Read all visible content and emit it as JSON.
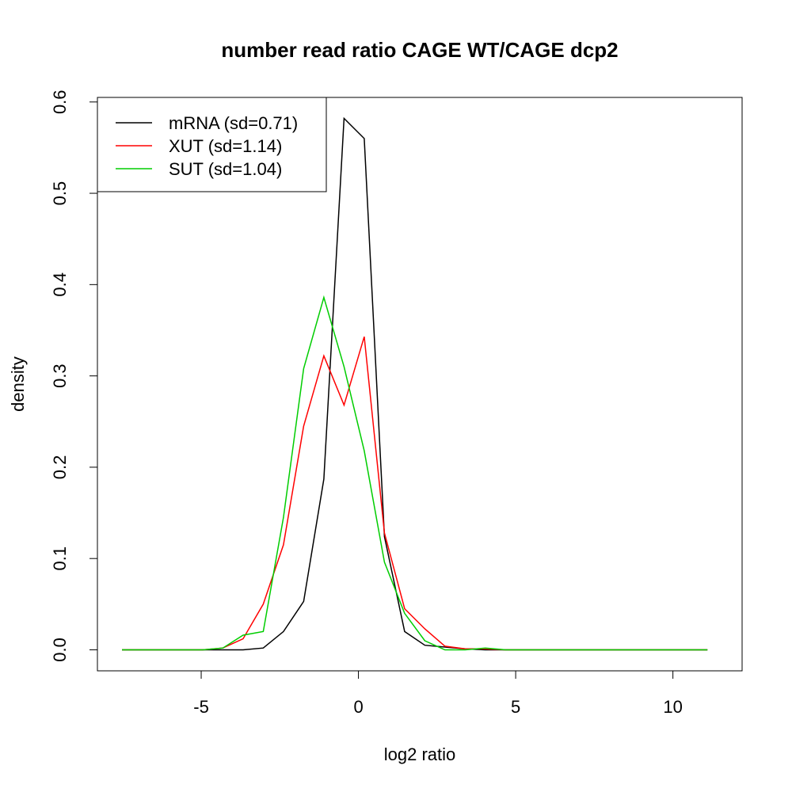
{
  "chart_data": {
    "type": "line",
    "title": "number read ratio CAGE WT/CAGE dcp2",
    "xlabel": "log2 ratio",
    "ylabel": "density",
    "xlim": [
      -8.3,
      12.2
    ],
    "ylim": [
      -0.023,
      0.605
    ],
    "x_ticks": [
      -5,
      0,
      5,
      10
    ],
    "x_tick_labels": [
      "-5",
      "0",
      "5",
      "10"
    ],
    "y_ticks": [
      0,
      0.1,
      0.2,
      0.3,
      0.4,
      0.5,
      0.6
    ],
    "y_tick_labels": [
      "0.0",
      "0.1",
      "0.2",
      "0.3",
      "0.4",
      "0.5",
      "0.6"
    ],
    "grid": false,
    "legend_position": "top-left",
    "x_start": -7.52,
    "x_step": 0.642,
    "series": [
      {
        "name": "mRNA (sd=0.71)",
        "color": "#000000",
        "values": [
          0,
          0,
          0,
          0,
          0,
          0,
          0,
          0.002,
          0.02,
          0.053,
          0.187,
          0.582,
          0.56,
          0.124,
          0.02,
          0.005,
          0.003,
          0.001,
          0,
          0,
          0,
          0,
          0,
          0,
          0,
          0,
          0,
          0,
          0,
          0
        ]
      },
      {
        "name": "XUT (sd=1.14)",
        "color": "#ff0000",
        "values": [
          0,
          0,
          0,
          0,
          0,
          0.002,
          0.012,
          0.05,
          0.115,
          0.245,
          0.322,
          0.268,
          0.343,
          0.128,
          0.045,
          0.023,
          0.004,
          0.001,
          0.001,
          0,
          0,
          0,
          0,
          0,
          0,
          0,
          0,
          0,
          0,
          0
        ]
      },
      {
        "name": "SUT (sd=1.04)",
        "color": "#00cd00",
        "values": [
          0,
          0,
          0,
          0,
          0,
          0.002,
          0.016,
          0.02,
          0.145,
          0.308,
          0.386,
          0.31,
          0.218,
          0.096,
          0.04,
          0.01,
          0,
          0,
          0.002,
          0,
          0,
          0,
          0,
          0,
          0,
          0,
          0,
          0,
          0,
          0
        ]
      }
    ]
  }
}
